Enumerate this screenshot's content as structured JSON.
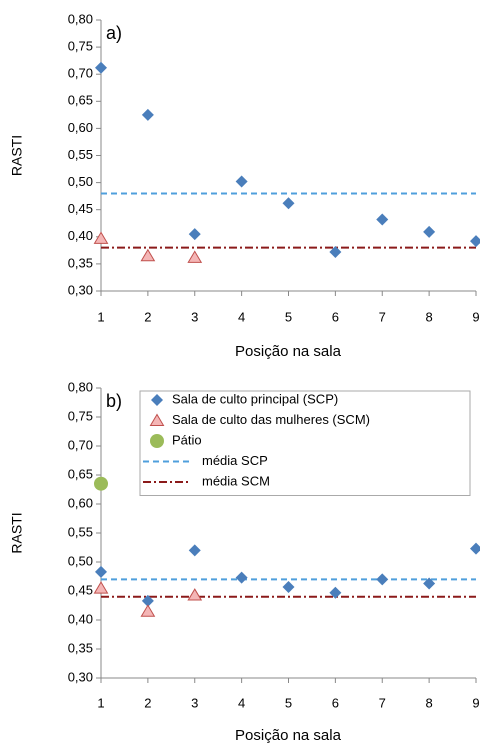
{
  "chart_data": [
    {
      "type": "scatter",
      "annotation": "a)",
      "ylabel": "RASTI",
      "xlabel": "Posição na sala",
      "xlim": [
        1,
        9
      ],
      "xticks": [
        1,
        2,
        3,
        4,
        5,
        6,
        7,
        8,
        9
      ],
      "ylim": [
        0.3,
        0.8
      ],
      "yticks": [
        {
          "value": 0.3,
          "label": "0,30"
        },
        {
          "value": 0.35,
          "label": "0,35"
        },
        {
          "value": 0.4,
          "label": "0,40"
        },
        {
          "value": 0.45,
          "label": "0,45"
        },
        {
          "value": 0.5,
          "label": "0,50"
        },
        {
          "value": 0.55,
          "label": "0,55"
        },
        {
          "value": 0.6,
          "label": "0,60"
        },
        {
          "value": 0.65,
          "label": "0,65"
        },
        {
          "value": 0.7,
          "label": "0,70"
        },
        {
          "value": 0.75,
          "label": "0,75"
        },
        {
          "value": 0.8,
          "label": "0,80"
        }
      ],
      "series": [
        {
          "marker": "diamond",
          "color": "#4a7ebb",
          "x": [
            1,
            2,
            3,
            4,
            5,
            6,
            7,
            8,
            9
          ],
          "values": [
            0.712,
            0.625,
            0.405,
            0.502,
            0.462,
            0.372,
            0.432,
            0.409,
            0.392
          ]
        },
        {
          "marker": "triangle",
          "color": "#c0504d",
          "x": [
            1,
            2,
            3
          ],
          "values": [
            0.397,
            0.365,
            0.362
          ]
        }
      ],
      "hlines": [
        {
          "value": 0.48,
          "color": "#4f9fdc",
          "dash": "6 4"
        },
        {
          "value": 0.38,
          "color": "#8b1a1a",
          "dash": "8 3 2 3"
        }
      ]
    },
    {
      "type": "scatter",
      "annotation": "b)",
      "ylabel": "RASTI",
      "xlabel": "Posição na sala",
      "xlim": [
        1,
        9
      ],
      "xticks": [
        1,
        2,
        3,
        4,
        5,
        6,
        7,
        8,
        9
      ],
      "ylim": [
        0.3,
        0.8
      ],
      "yticks": [
        {
          "value": 0.3,
          "label": "0,30"
        },
        {
          "value": 0.35,
          "label": "0,35"
        },
        {
          "value": 0.4,
          "label": "0,40"
        },
        {
          "value": 0.45,
          "label": "0,45"
        },
        {
          "value": 0.5,
          "label": "0,50"
        },
        {
          "value": 0.55,
          "label": "0,55"
        },
        {
          "value": 0.6,
          "label": "0,60"
        },
        {
          "value": 0.65,
          "label": "0,65"
        },
        {
          "value": 0.7,
          "label": "0,70"
        },
        {
          "value": 0.75,
          "label": "0,75"
        },
        {
          "value": 0.8,
          "label": "0,80"
        }
      ],
      "legend": "top-right",
      "series": [
        {
          "name": "Sala de culto principal (SCP)",
          "marker": "diamond",
          "color": "#4a7ebb",
          "x": [
            1,
            2,
            3,
            4,
            5,
            6,
            7,
            8,
            9
          ],
          "values": [
            0.483,
            0.433,
            0.52,
            0.473,
            0.457,
            0.447,
            0.47,
            0.463,
            0.523
          ]
        },
        {
          "name": "Sala de culto das mulheres (SCM)",
          "marker": "triangle",
          "color": "#c0504d",
          "x": [
            1,
            2,
            3
          ],
          "values": [
            0.455,
            0.415,
            0.443
          ]
        },
        {
          "name": "Pátio",
          "marker": "circle",
          "color": "#9bbb59",
          "x": [
            1
          ],
          "values": [
            0.635
          ]
        }
      ],
      "hlines": [
        {
          "name": "média SCP",
          "value": 0.47,
          "color": "#4f9fdc",
          "dash": "6 4"
        },
        {
          "name": "média SCM",
          "value": 0.44,
          "color": "#8b1a1a",
          "dash": "8 3 2 3"
        }
      ]
    }
  ]
}
